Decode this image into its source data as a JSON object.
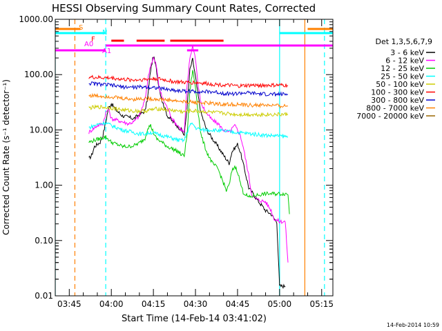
{
  "chart_data": {
    "type": "line",
    "title": "HESSI Observing Summary Count Rates, Corrected",
    "ylabel": "Corrected Count Rate (s⁻¹ detector⁻¹)",
    "xlabel": "Start Time (14-Feb-14 03:41:02)",
    "footer": "14-Feb-2014 10:59",
    "y_scale": "log",
    "ylim": [
      0.01,
      1000
    ],
    "xlim_minutes": [
      220,
      319
    ],
    "y_ticks": [
      {
        "v": 1000,
        "label": "1000.00"
      },
      {
        "v": 100,
        "label": "100.00"
      },
      {
        "v": 10,
        "label": "10.00"
      },
      {
        "v": 1,
        "label": "1.00"
      },
      {
        "v": 0.1,
        "label": "0.10"
      },
      {
        "v": 0.01,
        "label": "0.01"
      }
    ],
    "x_ticks": [
      {
        "m": 225,
        "label": "03:45"
      },
      {
        "m": 240,
        "label": "04:00"
      },
      {
        "m": 255,
        "label": "04:15"
      },
      {
        "m": 270,
        "label": "04:30"
      },
      {
        "m": 285,
        "label": "04:45"
      },
      {
        "m": 300,
        "label": "05:00"
      },
      {
        "m": 315,
        "label": "05:15"
      }
    ],
    "legend_title": "Det 1,3,5,6,7,9",
    "legend_position": "right",
    "series": [
      {
        "name": "3 - 6 keV",
        "color": "#000000",
        "points": [
          [
            232,
            3
          ],
          [
            233,
            3.5
          ],
          [
            234,
            5
          ],
          [
            236,
            6
          ],
          [
            237,
            8
          ],
          [
            238,
            14
          ],
          [
            239,
            25
          ],
          [
            240,
            30
          ],
          [
            242,
            22
          ],
          [
            244,
            18
          ],
          [
            246,
            17
          ],
          [
            248,
            16
          ],
          [
            250,
            19
          ],
          [
            252,
            22
          ],
          [
            253,
            40
          ],
          [
            254,
            120
          ],
          [
            255,
            220
          ],
          [
            256,
            130
          ],
          [
            257,
            60
          ],
          [
            258,
            35
          ],
          [
            260,
            18
          ],
          [
            262,
            14
          ],
          [
            265,
            10
          ],
          [
            266,
            8
          ],
          [
            267,
            25
          ],
          [
            268,
            120
          ],
          [
            269,
            190
          ],
          [
            270,
            90
          ],
          [
            271,
            40
          ],
          [
            272,
            20
          ],
          [
            274,
            10
          ],
          [
            276,
            7
          ],
          [
            278,
            5
          ],
          [
            280,
            3.5
          ],
          [
            282,
            2.5
          ],
          [
            283,
            4
          ],
          [
            285,
            5.5
          ],
          [
            286,
            4
          ],
          [
            288,
            1.5
          ],
          [
            289,
            0.9
          ],
          [
            292,
            0.55
          ],
          [
            295,
            0.35
          ],
          [
            297,
            0.3
          ],
          [
            298,
            0.25
          ],
          [
            299,
            0.22
          ],
          [
            300,
            0.015
          ],
          [
            302,
            0.015
          ]
        ]
      },
      {
        "name": "6 - 12 keV",
        "color": "#ff00ff",
        "points": [
          [
            232,
            9
          ],
          [
            233,
            10
          ],
          [
            235,
            12
          ],
          [
            237,
            13
          ],
          [
            238,
            20
          ],
          [
            239,
            24
          ],
          [
            240,
            16
          ],
          [
            242,
            15
          ],
          [
            244,
            14
          ],
          [
            246,
            13
          ],
          [
            248,
            14
          ],
          [
            250,
            18
          ],
          [
            252,
            35
          ],
          [
            253,
            80
          ],
          [
            254,
            150
          ],
          [
            255,
            200
          ],
          [
            256,
            150
          ],
          [
            257,
            60
          ],
          [
            258,
            40
          ],
          [
            260,
            25
          ],
          [
            262,
            15
          ],
          [
            265,
            10
          ],
          [
            266,
            9
          ],
          [
            267,
            60
          ],
          [
            268,
            200
          ],
          [
            269,
            330
          ],
          [
            270,
            200
          ],
          [
            271,
            60
          ],
          [
            272,
            30
          ],
          [
            274,
            20
          ],
          [
            276,
            15
          ],
          [
            278,
            13
          ],
          [
            280,
            10
          ],
          [
            282,
            9
          ],
          [
            284,
            12
          ],
          [
            285,
            10
          ],
          [
            286,
            8
          ],
          [
            287,
            5
          ],
          [
            289,
            1.5
          ],
          [
            290,
            0.7
          ],
          [
            292,
            0.55
          ],
          [
            295,
            0.5
          ],
          [
            297,
            0.35
          ],
          [
            298,
            0.25
          ],
          [
            300,
            0.22
          ],
          [
            302,
            0.22
          ],
          [
            303,
            0.04
          ]
        ]
      },
      {
        "name": "12 - 25 keV",
        "color": "#00cc00",
        "points": [
          [
            232,
            6
          ],
          [
            234,
            6.5
          ],
          [
            236,
            7
          ],
          [
            238,
            7.5
          ],
          [
            240,
            6
          ],
          [
            242,
            5.5
          ],
          [
            244,
            5
          ],
          [
            246,
            5
          ],
          [
            248,
            5.2
          ],
          [
            250,
            5.8
          ],
          [
            252,
            7
          ],
          [
            253,
            11
          ],
          [
            254,
            12
          ],
          [
            255,
            9
          ],
          [
            256,
            7
          ],
          [
            258,
            6
          ],
          [
            260,
            5
          ],
          [
            262,
            4.5
          ],
          [
            264,
            4
          ],
          [
            265,
            3.5
          ],
          [
            266,
            3.5
          ],
          [
            267,
            8
          ],
          [
            268,
            50
          ],
          [
            269,
            120
          ],
          [
            270,
            60
          ],
          [
            271,
            20
          ],
          [
            272,
            8
          ],
          [
            274,
            4
          ],
          [
            276,
            2.5
          ],
          [
            278,
            2
          ],
          [
            280,
            1.1
          ],
          [
            281,
            0.8
          ],
          [
            282,
            1
          ],
          [
            283,
            1.8
          ],
          [
            284,
            2.2
          ],
          [
            285,
            1.8
          ],
          [
            286,
            1.1
          ],
          [
            287,
            0.75
          ],
          [
            289,
            0.6
          ],
          [
            291,
            0.65
          ],
          [
            295,
            0.7
          ],
          [
            300,
            0.7
          ],
          [
            303,
            0.7
          ],
          [
            303.5,
            0.3
          ]
        ]
      },
      {
        "name": "25 - 50 keV",
        "color": "#00ffff",
        "points": [
          [
            232,
            11
          ],
          [
            234,
            12
          ],
          [
            236,
            13
          ],
          [
            238,
            13.5
          ],
          [
            240,
            12
          ],
          [
            242,
            11
          ],
          [
            244,
            10
          ],
          [
            246,
            9.5
          ],
          [
            248,
            9
          ],
          [
            250,
            8.5
          ],
          [
            252,
            8.5
          ],
          [
            254,
            9
          ],
          [
            256,
            8.5
          ],
          [
            258,
            8
          ],
          [
            260,
            7.5
          ],
          [
            262,
            7
          ],
          [
            264,
            6.5
          ],
          [
            266,
            6.5
          ],
          [
            267,
            9
          ],
          [
            268,
            12
          ],
          [
            269,
            13
          ],
          [
            270,
            11
          ],
          [
            272,
            10
          ],
          [
            276,
            10
          ],
          [
            280,
            9.5
          ],
          [
            285,
            9
          ],
          [
            290,
            8.5
          ],
          [
            295,
            8
          ],
          [
            300,
            7.8
          ],
          [
            303,
            7.5
          ]
        ]
      },
      {
        "name": "50 - 100 keV",
        "color": "#cccc00",
        "points": [
          [
            232,
            25
          ],
          [
            236,
            26
          ],
          [
            240,
            25
          ],
          [
            244,
            23
          ],
          [
            248,
            22
          ],
          [
            252,
            22
          ],
          [
            256,
            24
          ],
          [
            258,
            24
          ],
          [
            260,
            23
          ],
          [
            264,
            22
          ],
          [
            266,
            21
          ],
          [
            268,
            22
          ],
          [
            270,
            22
          ],
          [
            275,
            21
          ],
          [
            280,
            20
          ],
          [
            285,
            19
          ],
          [
            290,
            19
          ],
          [
            295,
            19
          ],
          [
            300,
            19
          ],
          [
            303,
            19
          ]
        ]
      },
      {
        "name": "100 - 300 keV",
        "color": "#ff0000",
        "points": [
          [
            232,
            90
          ],
          [
            236,
            88
          ],
          [
            240,
            87
          ],
          [
            244,
            82
          ],
          [
            248,
            80
          ],
          [
            252,
            82
          ],
          [
            256,
            85
          ],
          [
            258,
            82
          ],
          [
            262,
            75
          ],
          [
            266,
            72
          ],
          [
            270,
            72
          ],
          [
            275,
            68
          ],
          [
            280,
            65
          ],
          [
            285,
            62
          ],
          [
            290,
            64
          ],
          [
            295,
            64
          ],
          [
            300,
            64
          ],
          [
            303,
            64
          ]
        ]
      },
      {
        "name": "300 - 800 keV",
        "color": "#0000cc",
        "points": [
          [
            232,
            70
          ],
          [
            236,
            67
          ],
          [
            240,
            64
          ],
          [
            244,
            60
          ],
          [
            248,
            59
          ],
          [
            252,
            60
          ],
          [
            256,
            58
          ],
          [
            260,
            54
          ],
          [
            264,
            51
          ],
          [
            268,
            50
          ],
          [
            272,
            49
          ],
          [
            276,
            49
          ],
          [
            280,
            46
          ],
          [
            284,
            45
          ],
          [
            288,
            47
          ],
          [
            292,
            45
          ],
          [
            296,
            44
          ],
          [
            300,
            44
          ],
          [
            303,
            44
          ]
        ]
      },
      {
        "name": "800 - 7000 keV",
        "color": "#ff8000",
        "points": [
          [
            232,
            42
          ],
          [
            236,
            41
          ],
          [
            240,
            40
          ],
          [
            244,
            37
          ],
          [
            248,
            36
          ],
          [
            252,
            37
          ],
          [
            256,
            36
          ],
          [
            260,
            35
          ],
          [
            264,
            33
          ],
          [
            268,
            32
          ],
          [
            272,
            31
          ],
          [
            276,
            30
          ],
          [
            280,
            29
          ],
          [
            284,
            29
          ],
          [
            288,
            28
          ],
          [
            292,
            28
          ],
          [
            296,
            28
          ],
          [
            300,
            27
          ],
          [
            303,
            27
          ]
        ]
      },
      {
        "name": "7000 - 20000 keV",
        "color": "#996600",
        "points": []
      }
    ],
    "annotations": [
      {
        "label": "S",
        "color": "#ff8000",
        "segments": [
          [
            220,
            229
          ]
        ]
      },
      {
        "label": "N",
        "color": "#00ffff",
        "segments": [
          [
            220,
            238
          ],
          [
            300,
            319
          ]
        ]
      },
      {
        "label": "F",
        "color": "#ff0000",
        "segments": [
          [
            240,
            244.5
          ],
          [
            249,
            259
          ],
          [
            261,
            280
          ]
        ]
      },
      {
        "label": "A0",
        "color": "#ff00ff",
        "segments": [
          [
            238,
            319
          ]
        ]
      },
      {
        "label": "A1",
        "color": "#ff00ff",
        "segments": [
          [
            220,
            238
          ],
          [
            267,
            271
          ]
        ]
      },
      {
        "label": "",
        "color": "#ff8000",
        "segments": [
          [
            310,
            319
          ]
        ]
      }
    ],
    "vlines": [
      {
        "m": 220,
        "color": "#00ffff",
        "dash": false
      },
      {
        "m": 227,
        "color": "#ff8000",
        "dash": true
      },
      {
        "m": 238,
        "color": "#00ffff",
        "dash": true
      },
      {
        "m": 300,
        "color": "#00ffff",
        "dash": false
      },
      {
        "m": 309,
        "color": "#ff8000",
        "dash": false
      },
      {
        "m": 316,
        "color": "#00ffff",
        "dash": true
      }
    ]
  }
}
